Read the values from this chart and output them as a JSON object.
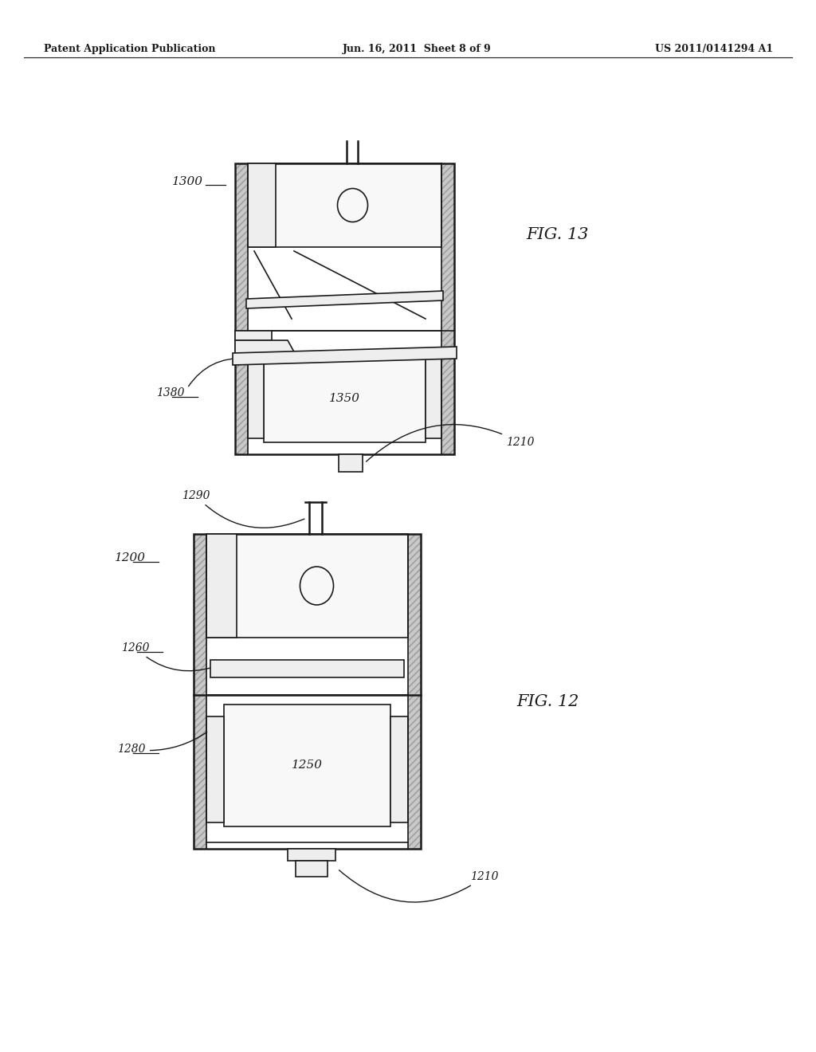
{
  "background_color": "#ffffff",
  "header_left": "Patent Application Publication",
  "header_center": "Jun. 16, 2011  Sheet 8 of 9",
  "header_right": "US 2011/0141294 A1",
  "fig12_label": "FIG. 12",
  "fig13_label": "FIG. 13",
  "fig12_number": "1200",
  "fig13_number": "1300",
  "label_1210_fig12": "1210",
  "label_1250": "1250",
  "label_1260": "1260",
  "label_1280": "1280",
  "label_1290": "1290",
  "label_1210_fig13": "1210",
  "label_1350": "1350",
  "label_1380": "1380",
  "dark": "#1a1a1a",
  "hatch_color": "#999999",
  "face_light": "#f8f8f8",
  "face_mid": "#eeeeee"
}
